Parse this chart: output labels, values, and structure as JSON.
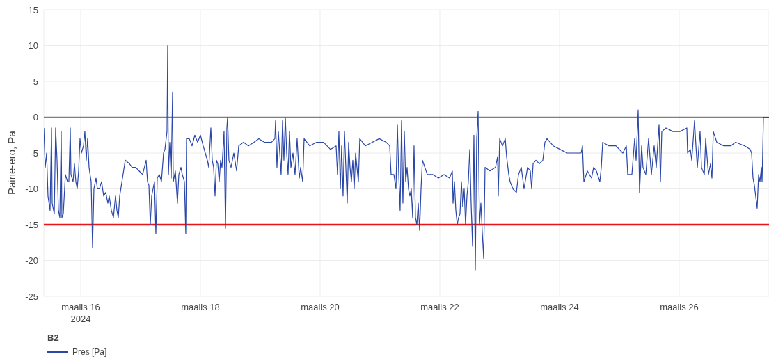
{
  "chart_data": {
    "type": "line",
    "ylabel": "Paine-ero, Pa",
    "legend_title": "B2",
    "legend": "bottom left",
    "grid": true,
    "marker": "none",
    "line_style": "solid",
    "xlim": [
      "2024-03-15T09:13",
      "2024-03-27T12:00"
    ],
    "xticks": [
      {
        "value": "2024-03-16",
        "label": "maalis 16\n2024"
      },
      {
        "value": "2024-03-18",
        "label": "maalis 18"
      },
      {
        "value": "2024-03-20",
        "label": "maalis 20"
      },
      {
        "value": "2024-03-22",
        "label": "maalis 22"
      },
      {
        "value": "2024-03-24",
        "label": "maalis 24"
      },
      {
        "value": "2024-03-26",
        "label": "maalis 26"
      }
    ],
    "ylim": [
      -25,
      15
    ],
    "yticks": [
      -25,
      -20,
      -15,
      -10,
      -5,
      0,
      5,
      10,
      15
    ],
    "ref_lines": [
      {
        "axis": "y",
        "value": 0,
        "color": "#7f7f7f"
      },
      {
        "axis": "y",
        "value": -15,
        "color": "#e8141a"
      }
    ],
    "x": [
      "2024-03-15T09:13",
      "2024-03-15T09:46",
      "2024-03-15T10:20",
      "2024-03-15T10:53",
      "2024-03-15T11:43",
      "2024-03-15T12:17",
      "2024-03-15T12:34",
      "2024-03-15T13:24",
      "2024-03-15T13:57",
      "2024-03-15T14:31",
      "2024-03-15T15:04",
      "2024-03-15T15:38",
      "2024-03-15T16:11",
      "2024-03-15T16:28",
      "2024-03-15T17:01",
      "2024-03-15T17:52",
      "2024-03-15T18:42",
      "2024-03-15T19:15",
      "2024-03-15T19:49",
      "2024-03-15T20:06",
      "2024-03-15T20:56",
      "2024-03-15T21:29",
      "2024-03-15T22:03",
      "2024-03-15T22:36",
      "2024-03-15T23:10",
      "2024-03-15T23:43",
      "2024-03-16T00:17",
      "2024-03-16T01:07",
      "2024-03-16T01:40",
      "2024-03-16T02:14",
      "2024-03-16T02:47",
      "2024-03-16T03:21",
      "2024-03-16T04:11",
      "2024-03-16T04:45",
      "2024-03-16T05:18",
      "2024-03-16T06:08",
      "2024-03-16T06:42",
      "2024-03-16T07:32",
      "2024-03-16T08:22",
      "2024-03-16T09:13",
      "2024-03-16T10:03",
      "2024-03-16T10:53",
      "2024-03-16T11:26",
      "2024-03-16T12:17",
      "2024-03-16T13:07",
      "2024-03-16T13:57",
      "2024-03-16T14:31",
      "2024-03-16T15:04",
      "2024-03-16T15:38",
      "2024-03-16T17:52",
      "2024-03-16T19:32",
      "2024-03-16T20:39",
      "2024-03-16T22:03",
      "2024-03-16T23:26",
      "2024-03-17T00:50",
      "2024-03-17T02:14",
      "2024-03-17T02:47",
      "2024-03-17T03:21",
      "2024-03-17T03:54",
      "2024-03-17T04:28",
      "2024-03-17T05:01",
      "2024-03-17T05:35",
      "2024-03-17T06:08",
      "2024-03-17T06:42",
      "2024-03-17T07:32",
      "2024-03-17T08:22",
      "2024-03-17T09:13",
      "2024-03-17T09:46",
      "2024-03-17T10:36",
      "2024-03-17T10:53",
      "2024-03-17T11:10",
      "2024-03-17T11:43",
      "2024-03-17T12:17",
      "2024-03-17T12:50",
      "2024-03-17T13:07",
      "2024-03-17T13:57",
      "2024-03-17T14:47",
      "2024-03-17T15:21",
      "2024-03-17T16:11",
      "2024-03-17T16:45",
      "2024-03-17T17:35",
      "2024-03-17T18:08",
      "2024-03-17T18:25",
      "2024-03-17T19:32",
      "2024-03-17T20:39",
      "2024-03-17T21:46",
      "2024-03-17T22:53",
      "2024-03-18T00:00",
      "2024-03-18T01:07",
      "2024-03-18T01:57",
      "2024-03-18T02:47",
      "2024-03-18T03:21",
      "2024-03-18T04:11",
      "2024-03-18T04:45",
      "2024-03-18T05:18",
      "2024-03-18T05:52",
      "2024-03-18T06:25",
      "2024-03-18T06:59",
      "2024-03-18T07:32",
      "2024-03-18T08:06",
      "2024-03-18T08:39",
      "2024-03-18T09:29",
      "2024-03-18T10:03",
      "2024-03-18T10:36",
      "2024-03-18T10:53",
      "2024-03-18T11:26",
      "2024-03-18T12:17",
      "2024-03-18T13:24",
      "2024-03-18T14:31",
      "2024-03-18T15:21",
      "2024-03-18T17:18",
      "2024-03-18T19:15",
      "2024-03-18T21:29",
      "2024-03-18T23:26",
      "2024-03-19T01:40",
      "2024-03-19T04:28",
      "2024-03-19T05:52",
      "2024-03-19T06:08",
      "2024-03-19T06:42",
      "2024-03-19T07:15",
      "2024-03-19T07:49",
      "2024-03-19T08:22",
      "2024-03-19T08:56",
      "2024-03-19T09:29",
      "2024-03-19T10:03",
      "2024-03-19T10:36",
      "2024-03-19T11:10",
      "2024-03-19T11:43",
      "2024-03-19T12:17",
      "2024-03-19T13:07",
      "2024-03-19T13:57",
      "2024-03-19T14:47",
      "2024-03-19T15:38",
      "2024-03-19T16:11",
      "2024-03-19T17:01",
      "2024-03-19T17:35",
      "2024-03-19T19:49",
      "2024-03-19T22:36",
      "2024-03-20T01:24",
      "2024-03-20T04:11",
      "2024-03-20T06:25",
      "2024-03-20T06:59",
      "2024-03-20T07:32",
      "2024-03-20T08:06",
      "2024-03-20T08:39",
      "2024-03-20T09:12",
      "2024-03-20T09:46",
      "2024-03-20T10:19",
      "2024-03-20T10:53",
      "2024-03-20T11:26",
      "2024-03-20T12:00",
      "2024-03-20T12:33",
      "2024-03-20T13:07",
      "2024-03-20T13:40",
      "2024-03-20T14:14",
      "2024-03-20T14:47",
      "2024-03-20T15:21",
      "2024-03-20T15:54",
      "2024-03-20T18:08",
      "2024-03-20T20:56",
      "2024-03-20T23:43",
      "2024-03-21T02:31",
      "2024-03-21T03:54",
      "2024-03-21T04:28",
      "2024-03-21T05:35",
      "2024-03-21T06:25",
      "2024-03-21T06:59",
      "2024-03-21T07:32",
      "2024-03-21T08:05",
      "2024-03-21T08:39",
      "2024-03-21T09:12",
      "2024-03-21T09:46",
      "2024-03-21T10:19",
      "2024-03-21T10:53",
      "2024-03-21T11:26",
      "2024-03-21T12:00",
      "2024-03-21T12:33",
      "2024-03-21T13:07",
      "2024-03-21T13:40",
      "2024-03-21T14:14",
      "2024-03-21T14:47",
      "2024-03-21T15:21",
      "2024-03-21T15:54",
      "2024-03-21T16:28",
      "2024-03-21T17:01",
      "2024-03-21T18:59",
      "2024-03-21T21:13",
      "2024-03-21T23:26",
      "2024-03-22T01:40",
      "2024-03-22T03:54",
      "2024-03-22T05:01",
      "2024-03-22T05:18",
      "2024-03-22T05:52",
      "2024-03-22T06:25",
      "2024-03-22T06:59",
      "2024-03-22T07:32",
      "2024-03-22T08:05",
      "2024-03-22T08:39",
      "2024-03-22T09:12",
      "2024-03-22T09:46",
      "2024-03-22T10:19",
      "2024-03-22T10:53",
      "2024-03-22T11:26",
      "2024-03-22T12:00",
      "2024-03-22T12:33",
      "2024-03-22T13:07",
      "2024-03-22T13:40",
      "2024-03-22T14:14",
      "2024-03-22T14:47",
      "2024-03-22T15:21",
      "2024-03-22T15:54",
      "2024-03-22T16:28",
      "2024-03-22T17:01",
      "2024-03-22T17:35",
      "2024-03-22T18:08",
      "2024-03-22T20:05",
      "2024-03-22T22:19",
      "2024-03-22T23:10",
      "2024-03-22T23:26",
      "2024-03-23T00:00",
      "2024-03-23T01:07",
      "2024-03-23T02:14",
      "2024-03-23T02:47",
      "2024-03-23T03:38",
      "2024-03-23T04:11",
      "2024-03-23T05:18",
      "2024-03-23T06:42",
      "2024-03-23T07:32",
      "2024-03-23T08:39",
      "2024-03-23T09:46",
      "2024-03-23T11:10",
      "2024-03-23T12:17",
      "2024-03-23T12:50",
      "2024-03-23T13:24",
      "2024-03-23T14:31",
      "2024-03-23T15:54",
      "2024-03-23T17:18",
      "2024-03-23T18:08",
      "2024-03-23T18:58",
      "2024-03-23T21:29",
      "2024-03-24T00:17",
      "2024-03-24T03:04",
      "2024-03-24T05:51",
      "2024-03-24T08:39",
      "2024-03-24T09:12",
      "2024-03-24T09:46",
      "2024-03-24T11:10",
      "2024-03-24T12:50",
      "2024-03-24T13:40",
      "2024-03-24T14:47",
      "2024-03-24T16:11",
      "2024-03-24T16:45",
      "2024-03-24T17:18",
      "2024-03-24T19:49",
      "2024-03-24T22:36",
      "2024-03-25T01:24",
      "2024-03-25T02:47",
      "2024-03-25T03:21",
      "2024-03-25T05:01",
      "2024-03-25T06:08",
      "2024-03-25T06:42",
      "2024-03-25T07:15",
      "2024-03-25T07:32",
      "2024-03-25T08:05",
      "2024-03-25T08:56",
      "2024-03-25T09:29",
      "2024-03-25T10:36",
      "2024-03-25T11:43",
      "2024-03-25T12:50",
      "2024-03-25T13:57",
      "2024-03-25T14:47",
      "2024-03-25T15:21",
      "2024-03-25T15:55",
      "2024-03-25T16:28",
      "2024-03-25T17:01",
      "2024-03-25T18:42",
      "2024-03-25T21:29",
      "2024-03-26T00:17",
      "2024-03-26T03:04",
      "2024-03-26T03:21",
      "2024-03-26T04:28",
      "2024-03-26T05:02",
      "2024-03-26T06:08",
      "2024-03-26T06:42",
      "2024-03-26T07:15",
      "2024-03-26T08:22",
      "2024-03-26T08:56",
      "2024-03-26T10:03",
      "2024-03-26T10:36",
      "2024-03-26T11:43",
      "2024-03-26T12:33",
      "2024-03-26T13:07",
      "2024-03-26T13:40",
      "2024-03-26T15:04",
      "2024-03-26T17:51",
      "2024-03-26T20:39",
      "2024-03-26T22:36",
      "2024-03-27T02:14",
      "2024-03-27T04:28",
      "2024-03-27T05:01",
      "2024-03-27T05:35",
      "2024-03-27T06:08",
      "2024-03-27T07:15",
      "2024-03-27T07:49",
      "2024-03-27T08:22",
      "2024-03-27T08:56",
      "2024-03-27T09:13",
      "2024-03-27T09:46",
      "2024-03-27T12:00"
    ],
    "series": [
      {
        "name": "Pres [Pa]",
        "color": "#2a46a8",
        "values": [
          -1.5,
          -7,
          -5,
          -11,
          -13,
          -1.5,
          -12,
          -13.5,
          -1.5,
          -6,
          -13,
          -14,
          -2,
          -14,
          -13.5,
          -8,
          -9,
          -9,
          -1.5,
          -8,
          -9,
          -6.5,
          -9,
          -10,
          -7.5,
          -3,
          -5,
          -4,
          -2,
          -6,
          -3,
          -7,
          -9,
          -18.2,
          -10,
          -8.5,
          -10,
          -10,
          -9,
          -11,
          -10.5,
          -12,
          -11,
          -13,
          -14,
          -11,
          -13,
          -14,
          -11,
          -6,
          -6.5,
          -7,
          -7,
          -7.5,
          -8,
          -6,
          -9,
          -9.5,
          -15,
          -11,
          -10,
          -9,
          -16.3,
          -8.5,
          -8,
          -9,
          -5,
          -4.5,
          -2,
          10,
          -8,
          -3.5,
          -8.5,
          3.5,
          -9,
          -7.5,
          -12,
          -8,
          -7,
          -8,
          -9,
          -16.3,
          -3,
          -3,
          -4,
          -2.5,
          -3.5,
          -2.5,
          -4,
          -5,
          -6,
          -7,
          -1.5,
          -6,
          -7,
          -11,
          -6,
          -6.5,
          -9,
          -6,
          -7,
          -2,
          -15.5,
          -1.5,
          0,
          -6,
          -7,
          -5,
          -7.5,
          -4,
          -3.5,
          -4,
          -3.5,
          -3,
          -3.5,
          -3.5,
          -3,
          -0.5,
          -7,
          -2,
          -5,
          -8,
          -0.5,
          -6,
          0,
          -5,
          -8,
          -2,
          -7,
          -5,
          -8,
          -3,
          -8.5,
          -7,
          -9,
          -3,
          -4,
          -3.5,
          -3.5,
          -4.5,
          -4,
          -8,
          -2,
          -10,
          -4,
          -11,
          -2,
          -7,
          -12,
          -3.5,
          -7,
          -9,
          -6,
          -10,
          -5,
          -7,
          -9,
          -3,
          -4,
          -3.5,
          -3,
          -3.5,
          -4,
          -8,
          -8,
          -10,
          -1,
          -8,
          -13,
          -0.5,
          -12,
          -2,
          -9,
          -7,
          -10,
          -11,
          -10,
          -14,
          -4,
          -14,
          -15,
          -12,
          -15.8,
          -10,
          -6,
          -8,
          -8,
          -8.5,
          -8,
          -8.5,
          -7.5,
          -12,
          -9,
          -13,
          -15,
          -14,
          -13.5,
          -9,
          -12.5,
          -10,
          -15,
          -11,
          -9,
          -4.5,
          -12,
          -18,
          -2.5,
          -21.3,
          -3,
          0.8,
          -15,
          -12,
          -16,
          -19.7,
          -7,
          -7.5,
          -7,
          -5.5,
          -11,
          -3,
          -4,
          -3,
          -5.5,
          -8,
          -9,
          -10,
          -10.5,
          -8,
          -7,
          -10,
          -7,
          -7.5,
          -10,
          -6.5,
          -6,
          -6.5,
          -6,
          -3.5,
          -3,
          -4,
          -4.5,
          -5,
          -5,
          -5,
          -4,
          -9,
          -7.5,
          -8.5,
          -7,
          -7.5,
          -9,
          -7,
          -3.5,
          -4,
          -4,
          -5,
          -4,
          -8,
          -8,
          -3,
          -6,
          -1.5,
          1,
          -10.5,
          -4,
          -7,
          -8,
          -3,
          -8,
          -4,
          -7,
          -4,
          -1,
          -9,
          -2,
          -1.5,
          -2,
          -2,
          -1.5,
          -5,
          -4.5,
          -6,
          -0.5,
          -4,
          -7,
          -2,
          -7,
          -8,
          -3,
          -8,
          -6.5,
          -8.5,
          -2,
          -3.5,
          -4,
          -4,
          -3.5,
          -4,
          -4.5,
          -5,
          -8.5,
          -9.5,
          -12.7,
          -8,
          -9,
          -7,
          -9,
          0,
          0
        ]
      }
    ]
  }
}
